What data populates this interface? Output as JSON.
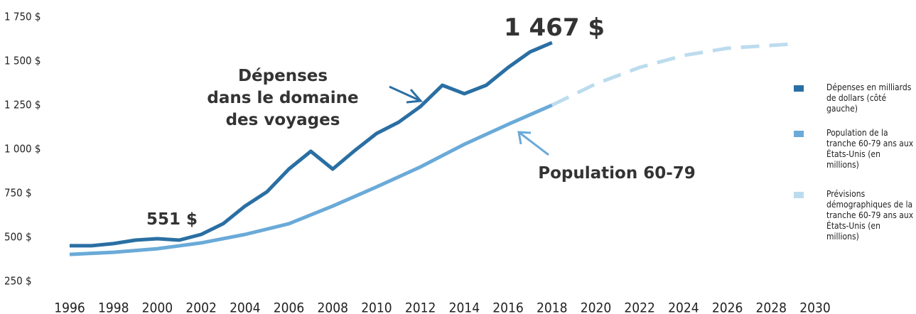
{
  "chart_data": {
    "type": "line",
    "ylim": [
      250,
      1750
    ],
    "yticks": [
      {
        "value": 250,
        "label": "250 $"
      },
      {
        "value": 500,
        "label": "500 $"
      },
      {
        "value": 750,
        "label": "750 $"
      },
      {
        "value": 1000,
        "label": "1 000 $"
      },
      {
        "value": 1250,
        "label": "1 250 $"
      },
      {
        "value": 1500,
        "label": "1 500 $"
      },
      {
        "value": 1750,
        "label": "1 750 $"
      }
    ],
    "xlim": [
      1996,
      2030
    ],
    "xticks": [
      1996,
      1998,
      2000,
      2002,
      2004,
      2006,
      2008,
      2010,
      2012,
      2014,
      2016,
      2018,
      2020,
      2022,
      2024,
      2026,
      2028,
      2030
    ],
    "series": [
      {
        "name": "Dépenses en milliards de dollars (côté gauche)",
        "color": "#2a6fa3",
        "dashed": false,
        "x": [
          1996,
          1997,
          1998,
          1999,
          2000,
          2001,
          2002,
          2003,
          2004,
          2005,
          2006,
          2007,
          2008,
          2009,
          2010,
          2011,
          2012,
          2013,
          2014,
          2015,
          2016,
          2017,
          2018
        ],
        "values": [
          452,
          452,
          464,
          484,
          492,
          484,
          516,
          577,
          677,
          758,
          887,
          988,
          887,
          992,
          1089,
          1153,
          1242,
          1363,
          1315,
          1363,
          1464,
          1552,
          1605
        ]
      },
      {
        "name": "Population de la tranche 60-79 ans aux États-Unis (en millions)",
        "color": "#6aaad8",
        "dashed": false,
        "x": [
          1996,
          1998,
          2000,
          2002,
          2004,
          2006,
          2008,
          2010,
          2012,
          2014,
          2016,
          2018
        ],
        "values": [
          403,
          415,
          435,
          468,
          516,
          577,
          677,
          786,
          899,
          1028,
          1141,
          1250
        ]
      },
      {
        "name": "Prévisions démographiques de la tranche 60-79 ans aux États-Unis (en millions)",
        "color": "#bcdcee",
        "dashed": true,
        "x": [
          2018,
          2020,
          2022,
          2024,
          2026,
          2028,
          2029
        ],
        "values": [
          1250,
          1371,
          1464,
          1532,
          1573,
          1589,
          1597
        ]
      }
    ],
    "annotations": [
      {
        "text": [
          "1 467 $"
        ]
      },
      {
        "text": [
          "551 $"
        ]
      },
      {
        "text": [
          "Dépenses",
          "dans le domaine",
          "des voyages"
        ]
      },
      {
        "text": [
          "Population 60-79"
        ]
      }
    ]
  }
}
